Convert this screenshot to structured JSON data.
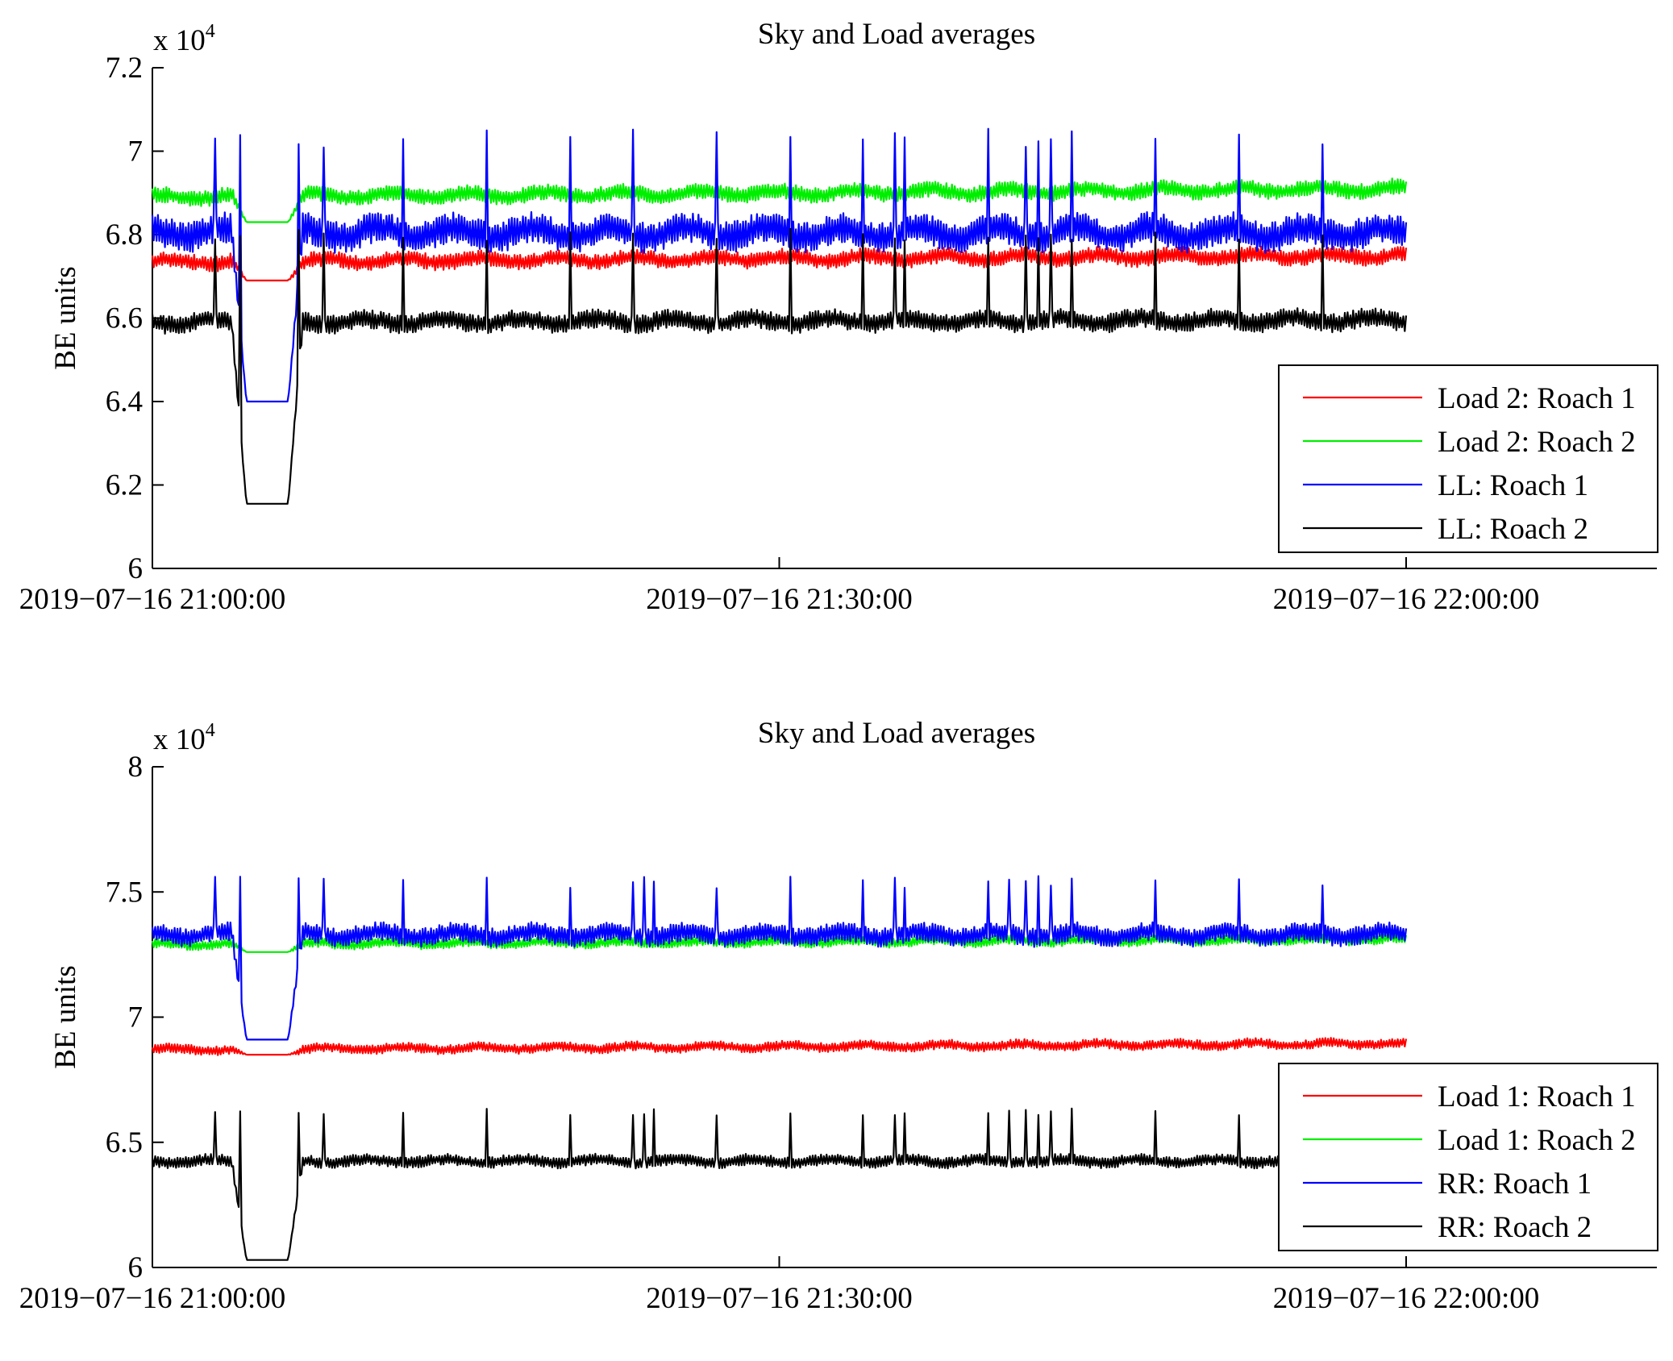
{
  "chart_data": [
    {
      "type": "line",
      "title": "Sky and Load averages",
      "xlabel": "",
      "ylabel": "BE units",
      "multiplier": "x 10",
      "multiplier_exp": "4",
      "x_ticks": [
        "2019−07−16 21:00:00",
        "2019−07−16 21:30:00",
        "2019−07−16 22:00:00"
      ],
      "x_tick_minutes": [
        0,
        30,
        60
      ],
      "xlim_minutes": [
        0,
        72
      ],
      "data_end_minute": 60,
      "ylim": [
        60000,
        72000
      ],
      "y_ticks": [
        60000,
        62000,
        64000,
        66000,
        68000,
        70000,
        72000
      ],
      "y_tick_labels": [
        "6",
        "6.2",
        "6.4",
        "6.6",
        "6.8",
        "7",
        "7.2"
      ],
      "grid": false,
      "legend_position": "bottom-right",
      "dip_minutes": [
        4.5,
        6.5
      ],
      "spike_minutes": [
        3.0,
        4.2,
        7.0,
        8.2,
        12.0,
        16.0,
        20.0,
        23.0,
        27.0,
        30.5,
        34.0,
        35.5,
        36.0,
        40.0,
        41.8,
        42.4,
        43.0,
        44.0,
        48.0,
        52.0,
        56.0
      ],
      "series": [
        {
          "name": "Load 2: Roach 1",
          "color": "#ff0000",
          "base_start": 67350,
          "base_end": 67500,
          "noise": 250,
          "spike": 0,
          "dip": 66900
        },
        {
          "name": "Load 2: Roach 2",
          "color": "#00ee00",
          "base_start": 68900,
          "base_end": 69100,
          "noise": 250,
          "spike": 0,
          "dip": 68300
        },
        {
          "name": "LL: Roach 1",
          "color": "#0000ff",
          "base_start": 68050,
          "base_end": 68050,
          "noise": 500,
          "spike": 70300,
          "dip": 64000
        },
        {
          "name": "LL: Roach 2",
          "color": "#000000",
          "base_start": 65900,
          "base_end": 65950,
          "noise": 300,
          "spike": 68000,
          "dip": 61550
        }
      ]
    },
    {
      "type": "line",
      "title": "Sky and Load averages",
      "xlabel": "",
      "ylabel": "BE units",
      "multiplier": "x 10",
      "multiplier_exp": "4",
      "x_ticks": [
        "2019−07−16 21:00:00",
        "2019−07−16 21:30:00",
        "2019−07−16 22:00:00"
      ],
      "x_tick_minutes": [
        0,
        30,
        60
      ],
      "xlim_minutes": [
        0,
        72
      ],
      "data_end_minute": 60,
      "ylim": [
        60000,
        80000
      ],
      "y_ticks": [
        60000,
        65000,
        70000,
        75000,
        80000
      ],
      "y_tick_labels": [
        "6",
        "6.5",
        "7",
        "7.5",
        "8"
      ],
      "grid": false,
      "legend_position": "bottom-right",
      "dip_minutes": [
        4.5,
        6.5
      ],
      "spike_minutes": [
        3.0,
        4.2,
        7.0,
        8.2,
        12.0,
        16.0,
        20.0,
        23.0,
        23.5,
        24.0,
        27.0,
        30.5,
        34.0,
        35.5,
        36.0,
        40.0,
        41.0,
        41.8,
        42.4,
        43.0,
        44.0,
        48.0,
        52.0,
        56.0
      ],
      "series": [
        {
          "name": "Load 1: Roach 1",
          "color": "#ff0000",
          "base_start": 68700,
          "base_end": 68950,
          "noise": 250,
          "spike": 0,
          "dip": 68500
        },
        {
          "name": "Load 1: Roach 2",
          "color": "#00ee00",
          "base_start": 72900,
          "base_end": 73100,
          "noise": 250,
          "spike": 0,
          "dip": 72600
        },
        {
          "name": "RR: Roach 1",
          "color": "#0000ff",
          "base_start": 73300,
          "base_end": 73300,
          "noise": 500,
          "spike": 75400,
          "dip": 69100
        },
        {
          "name": "RR: Roach 2",
          "color": "#000000",
          "base_start": 64250,
          "base_end": 64250,
          "noise": 300,
          "spike": 66200,
          "dip": 60300
        }
      ]
    }
  ]
}
